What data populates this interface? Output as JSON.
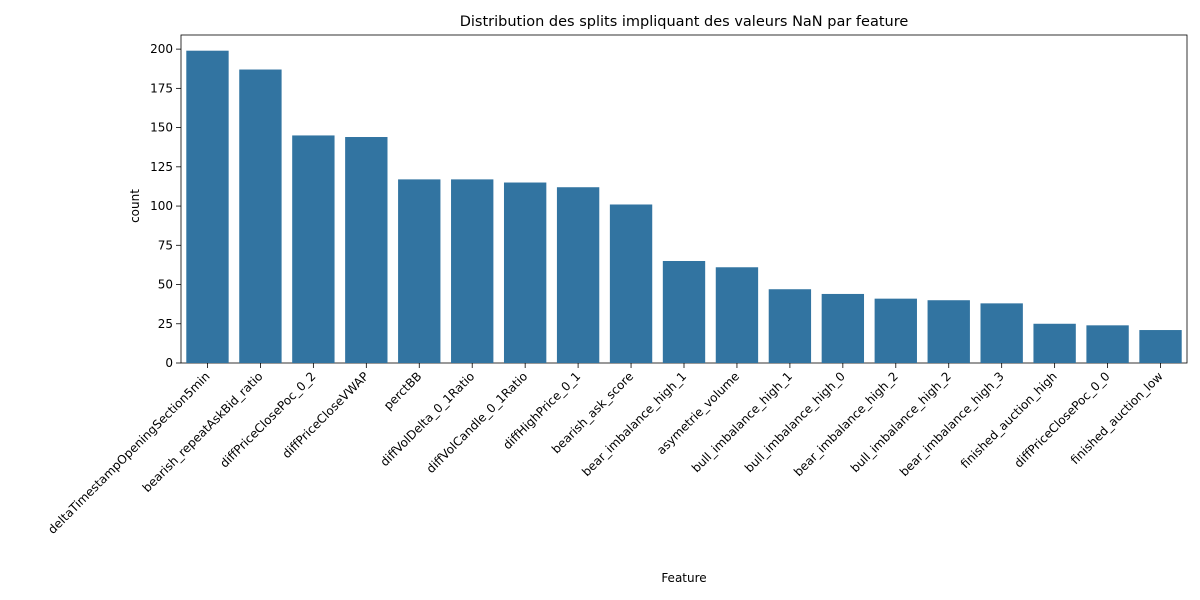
{
  "chart_data": {
    "type": "bar",
    "title": "Distribution des splits impliquant des valeurs NaN par feature",
    "xlabel": "Feature",
    "ylabel": "count",
    "categories": [
      "deltaTimestampOpeningSection5min",
      "bearish_repeatAskBid_ratio",
      "diffPriceClosePoc_0_2",
      "diffPriceCloseVWAP",
      "perctBB",
      "diffVolDelta_0_1Ratio",
      "diffVolCandle_0_1Ratio",
      "diffHighPrice_0_1",
      "bearish_ask_score",
      "bear_imbalance_high_1",
      "asymetrie_volume",
      "bull_imbalance_high_1",
      "bull_imbalance_high_0",
      "bear_imbalance_high_2",
      "bull_imbalance_high_2",
      "bear_imbalance_high_3",
      "finished_auction_high",
      "diffPriceClosePoc_0_0",
      "finished_auction_low"
    ],
    "values": [
      199,
      187,
      145,
      144,
      117,
      117,
      115,
      112,
      101,
      65,
      61,
      47,
      44,
      41,
      40,
      38,
      25,
      24,
      21
    ],
    "ylim": [
      0,
      209
    ],
    "yticks": [
      0,
      25,
      50,
      75,
      100,
      125,
      150,
      175,
      200
    ],
    "bar_color": "#3274a1",
    "grid": false,
    "legend": "none"
  }
}
